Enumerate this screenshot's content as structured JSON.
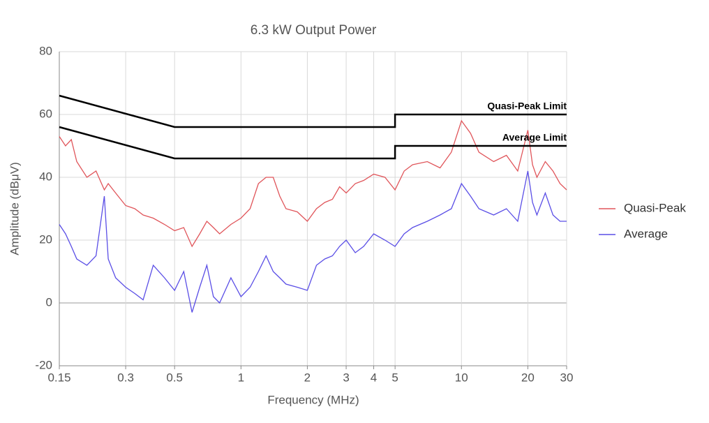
{
  "chart_data": {
    "type": "line",
    "title": "6.3 kW Output Power",
    "xlabel": "Frequency (MHz)",
    "ylabel": "Amplitude (dBμV)",
    "xscale": "log",
    "xlim": [
      0.15,
      30
    ],
    "ylim": [
      -20,
      80
    ],
    "xticks": [
      0.15,
      0.3,
      0.5,
      1,
      2,
      3,
      4,
      5,
      10,
      20,
      30
    ],
    "yticks": [
      -20,
      0,
      20,
      40,
      60,
      80
    ],
    "grid": true,
    "legend": "right",
    "x": [
      0.15,
      0.16,
      0.17,
      0.18,
      0.2,
      0.22,
      0.24,
      0.25,
      0.27,
      0.3,
      0.33,
      0.36,
      0.4,
      0.45,
      0.5,
      0.55,
      0.6,
      0.65,
      0.7,
      0.75,
      0.8,
      0.9,
      1.0,
      1.1,
      1.2,
      1.3,
      1.4,
      1.5,
      1.6,
      1.8,
      2.0,
      2.2,
      2.4,
      2.6,
      2.8,
      3.0,
      3.3,
      3.6,
      4.0,
      4.5,
      5.0,
      5.5,
      6,
      7,
      8,
      9,
      10,
      11,
      12,
      14,
      16,
      18,
      20,
      21,
      22,
      24,
      26,
      28,
      30
    ],
    "series": [
      {
        "name": "Quasi-Peak",
        "color": "#e0555a",
        "values": [
          53,
          50,
          52,
          45,
          40,
          42,
          36,
          38,
          35,
          31,
          30,
          28,
          27,
          25,
          23,
          24,
          18,
          22,
          26,
          24,
          22,
          25,
          27,
          30,
          38,
          40,
          40,
          34,
          30,
          29,
          26,
          30,
          32,
          33,
          37,
          35,
          38,
          39,
          41,
          40,
          36,
          42,
          44,
          45,
          43,
          48,
          58,
          54,
          48,
          45,
          47,
          42,
          55,
          44,
          40,
          45,
          42,
          38,
          36
        ]
      },
      {
        "name": "Average",
        "color": "#5a4ee6",
        "values": [
          25,
          22,
          18,
          14,
          12,
          15,
          34,
          14,
          8,
          5,
          3,
          1,
          12,
          8,
          4,
          10,
          -3,
          5,
          12,
          2,
          0,
          8,
          2,
          5,
          10,
          15,
          10,
          8,
          6,
          5,
          4,
          12,
          14,
          15,
          18,
          20,
          16,
          18,
          22,
          20,
          18,
          22,
          24,
          26,
          28,
          30,
          38,
          34,
          30,
          28,
          30,
          26,
          42,
          32,
          28,
          35,
          28,
          26,
          26
        ]
      }
    ],
    "limits": [
      {
        "name": "Quasi-Peak Limit",
        "color": "#000000",
        "x": [
          0.15,
          0.5,
          5,
          5,
          30
        ],
        "values": [
          66,
          56,
          56,
          60,
          60
        ]
      },
      {
        "name": "Average Limit",
        "color": "#000000",
        "x": [
          0.15,
          0.5,
          5,
          5,
          30
        ],
        "values": [
          56,
          46,
          46,
          50,
          50
        ]
      }
    ]
  }
}
